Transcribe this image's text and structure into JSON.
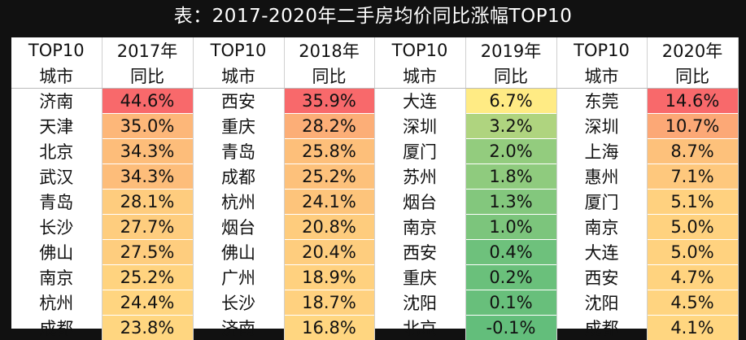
{
  "title": "表：2017-2020年二手房均价同比涨幅TOP10",
  "chart_data": {
    "type": "table",
    "header_row1": [
      "TOP10",
      "2017年",
      "TOP10",
      "2018年",
      "TOP10",
      "2019年",
      "TOP10",
      "2020年"
    ],
    "header_row2": [
      "城市",
      "同比",
      "城市",
      "同比",
      "城市",
      "同比",
      "城市",
      "同比"
    ],
    "years": [
      {
        "year": "2017年",
        "cities": [
          "济南",
          "天津",
          "北京",
          "武汉",
          "青岛",
          "长沙",
          "佛山",
          "南京",
          "杭州",
          "成都"
        ],
        "values": [
          44.6,
          35.0,
          34.3,
          34.3,
          28.1,
          27.7,
          27.5,
          25.2,
          24.4,
          23.8
        ],
        "labels": [
          "44.6%",
          "35.0%",
          "34.3%",
          "34.3%",
          "28.1%",
          "27.7%",
          "27.5%",
          "25.2%",
          "24.4%",
          "23.8%"
        ]
      },
      {
        "year": "2018年",
        "cities": [
          "西安",
          "重庆",
          "青岛",
          "成都",
          "杭州",
          "烟台",
          "佛山",
          "广州",
          "长沙",
          "济南"
        ],
        "values": [
          35.9,
          28.2,
          25.8,
          25.2,
          24.1,
          20.8,
          20.4,
          18.9,
          18.7,
          16.8
        ],
        "labels": [
          "35.9%",
          "28.2%",
          "25.8%",
          "25.2%",
          "24.1%",
          "20.8%",
          "20.4%",
          "18.9%",
          "18.7%",
          "16.8%"
        ]
      },
      {
        "year": "2019年",
        "cities": [
          "大连",
          "深圳",
          "厦门",
          "苏州",
          "烟台",
          "南京",
          "西安",
          "重庆",
          "沈阳",
          "北京"
        ],
        "values": [
          6.7,
          3.2,
          2.0,
          1.8,
          1.3,
          1.0,
          0.4,
          0.2,
          0.1,
          -0.1
        ],
        "labels": [
          "6.7%",
          "3.2%",
          "2.0%",
          "1.8%",
          "1.3%",
          "1.0%",
          "0.4%",
          "0.2%",
          "0.1%",
          "-0.1%"
        ]
      },
      {
        "year": "2020年",
        "cities": [
          "东莞",
          "深圳",
          "上海",
          "惠州",
          "厦门",
          "南京",
          "大连",
          "西安",
          "沈阳",
          "成都"
        ],
        "values": [
          14.6,
          10.7,
          8.7,
          7.1,
          5.1,
          5.0,
          5.0,
          4.7,
          4.5,
          4.1
        ],
        "labels": [
          "14.6%",
          "10.7%",
          "8.7%",
          "7.1%",
          "5.1%",
          "5.0%",
          "5.0%",
          "4.7%",
          "4.5%",
          "4.1%"
        ]
      }
    ],
    "color_scale": {
      "high": "#f8696b",
      "mid": "#ffeb84",
      "low": "#63be7b"
    }
  }
}
